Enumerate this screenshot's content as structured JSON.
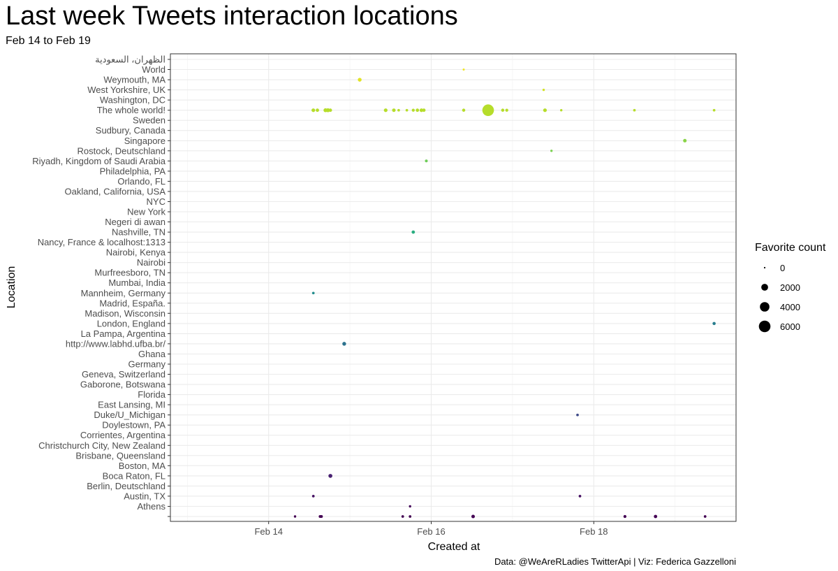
{
  "title": "Last week Tweets interaction locations",
  "subtitle": "Feb 14 to Feb 19",
  "caption": "Data: @WeAreRLadies TwitterApi | Viz: Federica Gazzelloni",
  "chart_data": {
    "type": "scatter",
    "xlabel": "Created at",
    "ylabel": "Location",
    "x_ticks": [
      "Feb 14",
      "Feb 16",
      "Feb 18"
    ],
    "xlim": [
      "2021-02-12 19:00",
      "2021-02-19 18:00"
    ],
    "grid": true,
    "legend_position": "right",
    "locations": [
      "",
      "Athens",
      "Austin, TX",
      "Berlin, Deutschland",
      "Boca Raton, FL",
      "Boston, MA",
      "Brisbane, Queensland",
      "Christchurch City, New Zealand",
      "Corrientes, Argentina",
      "Doylestown, PA",
      "Duke/U_Michigan",
      "East Lansing, MI",
      "Florida",
      "Gaborone, Botswana",
      "Geneva, Switzerland",
      "Germany",
      "Ghana",
      "http://www.labhd.ufba.br/",
      "La Pampa, Argentina",
      "London, England",
      "Madison, Wisconsin",
      "Madrid, España.",
      "Mannheim, Germany",
      "Mumbai, India",
      "Murfreesboro, TN",
      "Nairobi",
      "Nairobi, Kenya",
      "Nancy, France & localhost:1313",
      "Nashville, TN",
      "Negeri di awan",
      "New York",
      "NYC",
      "Oakland, California, USA",
      "Orlando, FL",
      "Philadelphia, PA",
      "Riyadh, Kingdom of Saudi Arabia",
      "Rostock, Deutschland",
      "Singapore",
      "Sudbury, Canada",
      "Sweden",
      "The whole world!",
      "Washington, DC",
      "West Yorkshire, UK",
      "Weymouth, MA",
      "World",
      "الظهران، السعودية"
    ],
    "color_scale": "viridis",
    "size_legend": {
      "title": "Favorite count",
      "breaks": [
        0,
        2000,
        4000,
        6000
      ]
    },
    "points": [
      {
        "location": "",
        "x": "2021-02-14 07:48",
        "favorites": 150
      },
      {
        "location": "",
        "x": "2021-02-14 15:12",
        "favorites": 250
      },
      {
        "location": "",
        "x": "2021-02-14 15:36",
        "favorites": 250
      },
      {
        "location": "",
        "x": "2021-02-15 15:36",
        "favorites": 200
      },
      {
        "location": "",
        "x": "2021-02-15 17:45",
        "favorites": 200
      },
      {
        "location": "",
        "x": "2021-02-16 12:22",
        "favorites": 450
      },
      {
        "location": "",
        "x": "2021-02-18 09:12",
        "favorites": 300
      },
      {
        "location": "",
        "x": "2021-02-18 18:14",
        "favorites": 400
      },
      {
        "location": "",
        "x": "2021-02-19 08:52",
        "favorites": 200
      },
      {
        "location": "Athens",
        "x": "2021-02-15 17:45",
        "favorites": 150
      },
      {
        "location": "Austin, TX",
        "x": "2021-02-14 13:12",
        "favorites": 200
      },
      {
        "location": "Austin, TX",
        "x": "2021-02-17 19:55",
        "favorites": 200
      },
      {
        "location": "Boca Raton, FL",
        "x": "2021-02-14 18:14",
        "favorites": 600
      },
      {
        "location": "Duke/U_Michigan",
        "x": "2021-02-17 19:12",
        "favorites": 200
      },
      {
        "location": "http://www.labhd.ufba.br/",
        "x": "2021-02-14 22:19",
        "favorites": 550
      },
      {
        "location": "London, England",
        "x": "2021-02-19 11:31",
        "favorites": 350
      },
      {
        "location": "Mannheim, Germany",
        "x": "2021-02-14 13:12",
        "favorites": 200
      },
      {
        "location": "Nashville, TN",
        "x": "2021-02-15 18:43",
        "favorites": 400
      },
      {
        "location": "Riyadh, Kingdom of Saudi Arabia",
        "x": "2021-02-15 22:34",
        "favorites": 250
      },
      {
        "location": "Rostock, Deutschland",
        "x": "2021-02-17 11:31",
        "favorites": 150
      },
      {
        "location": "Singapore",
        "x": "2021-02-19 02:53",
        "favorites": 450
      },
      {
        "location": "The whole world!",
        "x": "2021-02-14 13:12",
        "favorites": 500
      },
      {
        "location": "The whole world!",
        "x": "2021-02-14 14:24",
        "favorites": 400
      },
      {
        "location": "The whole world!",
        "x": "2021-02-14 16:48",
        "favorites": 600
      },
      {
        "location": "The whole world!",
        "x": "2021-02-14 17:31",
        "favorites": 600
      },
      {
        "location": "The whole world!",
        "x": "2021-02-14 18:14",
        "favorites": 400
      },
      {
        "location": "The whole world!",
        "x": "2021-02-15 10:34",
        "favorites": 500
      },
      {
        "location": "The whole world!",
        "x": "2021-02-15 12:58",
        "favorites": 450
      },
      {
        "location": "The whole world!",
        "x": "2021-02-15 14:24",
        "favorites": 200
      },
      {
        "location": "The whole world!",
        "x": "2021-02-15 16:48",
        "favorites": 200
      },
      {
        "location": "The whole world!",
        "x": "2021-02-15 18:43",
        "favorites": 300
      },
      {
        "location": "The whole world!",
        "x": "2021-02-15 19:55",
        "favorites": 400
      },
      {
        "location": "The whole world!",
        "x": "2021-02-15 21:07",
        "favorites": 500
      },
      {
        "location": "The whole world!",
        "x": "2021-02-15 21:50",
        "favorites": 400
      },
      {
        "location": "The whole world!",
        "x": "2021-02-16 09:36",
        "favorites": 350
      },
      {
        "location": "The whole world!",
        "x": "2021-02-16 16:48",
        "favorites": 6000
      },
      {
        "location": "The whole world!",
        "x": "2021-02-16 21:07",
        "favorites": 350
      },
      {
        "location": "The whole world!",
        "x": "2021-02-16 22:19",
        "favorites": 300
      },
      {
        "location": "The whole world!",
        "x": "2021-02-17 09:36",
        "favorites": 500
      },
      {
        "location": "The whole world!",
        "x": "2021-02-17 14:24",
        "favorites": 150
      },
      {
        "location": "The whole world!",
        "x": "2021-02-18 12:00",
        "favorites": 200
      },
      {
        "location": "The whole world!",
        "x": "2021-02-19 11:31",
        "favorites": 200
      },
      {
        "location": "West Yorkshire, UK",
        "x": "2021-02-17 09:12",
        "favorites": 150
      },
      {
        "location": "Weymouth, MA",
        "x": "2021-02-15 02:53",
        "favorites": 550
      },
      {
        "location": "World",
        "x": "2021-02-16 09:36",
        "favorites": 100
      }
    ]
  }
}
